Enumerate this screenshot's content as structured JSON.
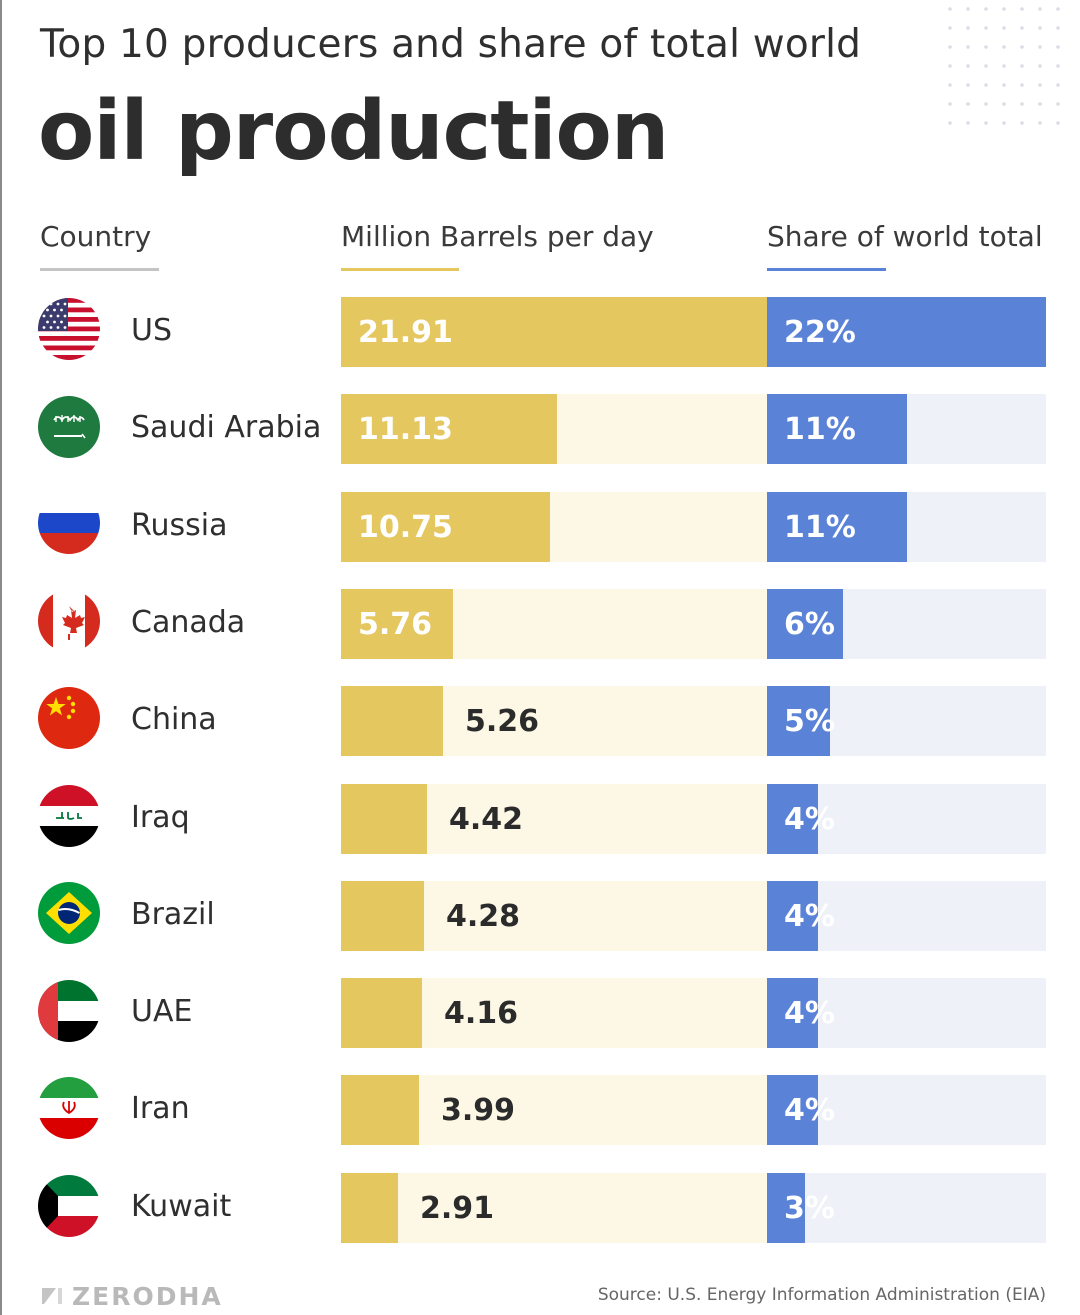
{
  "header": {
    "subtitle": "Top 10 producers and share of total world",
    "title": "oil production"
  },
  "columns": {
    "country": "Country",
    "barrels": "Million Barrels per day",
    "share": "Share of world total"
  },
  "colors": {
    "barrels_bar": "#e5c760",
    "barrels_track": "#fdf7e6",
    "share_bar": "#5a82d6",
    "share_track": "#eef1f8"
  },
  "chart_data": {
    "type": "bar",
    "orientation": "horizontal",
    "title": "Top 10 producers and share of total world oil production",
    "categories": [
      "US",
      "Saudi Arabia",
      "Russia",
      "Canada",
      "China",
      "Iraq",
      "Brazil",
      "UAE",
      "Iran",
      "Kuwait"
    ],
    "series": [
      {
        "name": "Million Barrels per day",
        "values": [
          21.91,
          11.13,
          10.75,
          5.76,
          5.26,
          4.42,
          4.28,
          4.16,
          3.99,
          2.91
        ],
        "labels": [
          "21.91",
          "11.13",
          "10.75",
          "5.76",
          "5.26",
          "4.42",
          "4.28",
          "4.16",
          "3.99",
          "2.91"
        ],
        "max": 21.91
      },
      {
        "name": "Share of world total",
        "values": [
          22,
          11,
          11,
          6,
          5,
          4,
          4,
          4,
          4,
          3
        ],
        "labels": [
          "22%",
          "11%",
          "11%",
          "6%",
          "5%",
          "4%",
          "4%",
          "4%",
          "4%",
          "3%"
        ],
        "max": 22
      }
    ],
    "flags": [
      "us-flag-icon",
      "saudi-arabia-flag-icon",
      "russia-flag-icon",
      "canada-flag-icon",
      "china-flag-icon",
      "iraq-flag-icon",
      "brazil-flag-icon",
      "uae-flag-icon",
      "iran-flag-icon",
      "kuwait-flag-icon"
    ]
  },
  "footer": {
    "brand": "ZERODHA",
    "source": "Source: U.S. Energy Information Administration (EIA)"
  }
}
